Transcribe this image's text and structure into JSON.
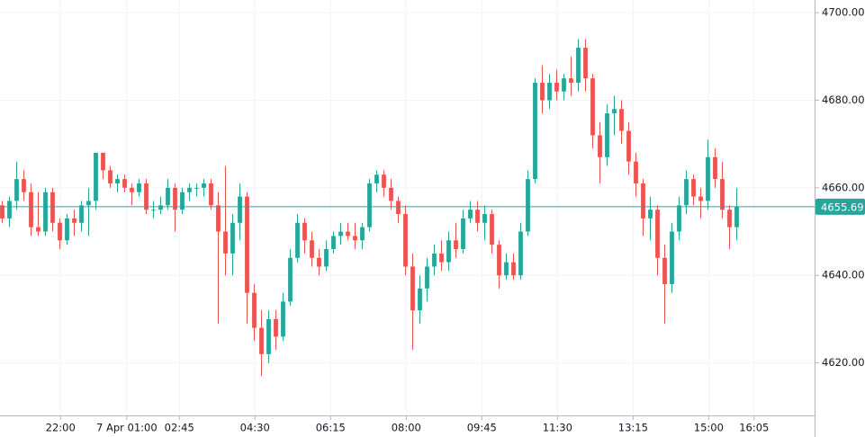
{
  "chart_data": {
    "type": "candlestick",
    "up_color": "#26a69a",
    "down_color": "#ef5350",
    "grid": true,
    "open": [
      4656,
      4653,
      4657,
      4662,
      4659,
      4651,
      4650,
      4659,
      4652,
      4648,
      4653,
      4652,
      4656,
      4657,
      4668,
      4664,
      4661,
      4662,
      4660,
      4659,
      4661,
      4655,
      4655,
      4656,
      4660,
      4655,
      4659,
      4660,
      4660,
      4661,
      4656,
      4650,
      4645,
      4652,
      4658,
      4636,
      4628,
      4622,
      4630,
      4626,
      4634,
      4644,
      4652,
      4648,
      4644,
      4642,
      4646,
      4649,
      4650,
      4649,
      4648,
      4651,
      4661,
      4663,
      4660,
      4657,
      4654,
      4642,
      4632,
      4637,
      4642,
      4645,
      4643,
      4648,
      4646,
      4653,
      4655,
      4652,
      4654,
      4647,
      4640,
      4643,
      4640,
      4650,
      4662,
      4684,
      4680,
      4684,
      4682,
      4685,
      4684,
      4692,
      4685,
      4672,
      4667,
      4677,
      4678,
      4673,
      4666,
      4661,
      4653,
      4655,
      4644,
      4638,
      4650,
      4656,
      4662,
      4658,
      4657,
      4667,
      4662,
      4655,
      4651
    ],
    "high": [
      4657,
      4658,
      4666,
      4664,
      4661,
      4659,
      4660,
      4660,
      4653,
      4654,
      4655,
      4657,
      4660,
      4668,
      4668,
      4665,
      4663,
      4663,
      4661,
      4662,
      4662,
      4657,
      4658,
      4662,
      4661,
      4660,
      4661,
      4661,
      4662,
      4662,
      4659,
      4665,
      4654,
      4661,
      4659,
      4638,
      4632,
      4632,
      4632,
      4636,
      4646,
      4654,
      4653,
      4650,
      4646,
      4648,
      4650,
      4652,
      4652,
      4652,
      4652,
      4662,
      4664,
      4664,
      4662,
      4658,
      4656,
      4645,
      4640,
      4644,
      4647,
      4648,
      4650,
      4652,
      4655,
      4657,
      4657,
      4656,
      4655,
      4648,
      4645,
      4645,
      4652,
      4664,
      4685,
      4688,
      4686,
      4687,
      4686,
      4690,
      4694,
      4694,
      4686,
      4675,
      4679,
      4681,
      4680,
      4675,
      4668,
      4662,
      4658,
      4656,
      4647,
      4652,
      4658,
      4664,
      4663,
      4660,
      4671,
      4669,
      4666,
      4656,
      4660
    ],
    "low": [
      4652,
      4651,
      4655,
      4657,
      4649,
      4649,
      4649,
      4650,
      4646,
      4647,
      4649,
      4650,
      4649,
      4655,
      4662,
      4660,
      4659,
      4659,
      4656,
      4658,
      4654,
      4653,
      4654,
      4655,
      4650,
      4654,
      4657,
      4658,
      4658,
      4655,
      4629,
      4640,
      4640,
      4648,
      4629,
      4625,
      4617,
      4620,
      4623,
      4625,
      4633,
      4643,
      4645,
      4642,
      4640,
      4641,
      4645,
      4647,
      4648,
      4646,
      4646,
      4650,
      4659,
      4658,
      4655,
      4652,
      4640,
      4623,
      4629,
      4634,
      4640,
      4641,
      4641,
      4644,
      4645,
      4652,
      4650,
      4648,
      4645,
      4637,
      4639,
      4639,
      4639,
      4649,
      4661,
      4677,
      4678,
      4680,
      4680,
      4681,
      4682,
      4682,
      4669,
      4661,
      4665,
      4672,
      4670,
      4663,
      4658,
      4649,
      4648,
      4640,
      4629,
      4636,
      4648,
      4654,
      4656,
      4653,
      4655,
      4660,
      4653,
      4646,
      4648
    ],
    "close": [
      4653,
      4657,
      4662,
      4659,
      4651,
      4650,
      4659,
      4652,
      4648,
      4653,
      4652,
      4656,
      4657,
      4668,
      4664,
      4661,
      4662,
      4660,
      4659,
      4661,
      4655,
      4655,
      4656,
      4660,
      4655,
      4659,
      4660,
      4660,
      4661,
      4656,
      4650,
      4645,
      4652,
      4658,
      4636,
      4628,
      4622,
      4630,
      4626,
      4634,
      4644,
      4652,
      4648,
      4644,
      4642,
      4646,
      4649,
      4650,
      4649,
      4648,
      4651,
      4661,
      4663,
      4660,
      4657,
      4654,
      4642,
      4632,
      4637,
      4642,
      4645,
      4643,
      4648,
      4646,
      4653,
      4655,
      4652,
      4654,
      4647,
      4640,
      4643,
      4640,
      4650,
      4662,
      4684,
      4680,
      4684,
      4682,
      4685,
      4684,
      4692,
      4685,
      4672,
      4667,
      4677,
      4678,
      4673,
      4666,
      4661,
      4653,
      4655,
      4644,
      4638,
      4650,
      4656,
      4662,
      4658,
      4657,
      4667,
      4662,
      4655,
      4651,
      4655.69
    ],
    "xlim": [
      -0.2,
      112.9
    ],
    "xticks": [
      {
        "value": 8.2,
        "label": "22:00"
      },
      {
        "value": 17.4,
        "label": "7 Apr 01:00"
      },
      {
        "value": 24.7,
        "label": "02:45"
      },
      {
        "value": 35.2,
        "label": "04:30"
      },
      {
        "value": 45.7,
        "label": "06:15"
      },
      {
        "value": 56.2,
        "label": "08:00"
      },
      {
        "value": 66.7,
        "label": "09:45"
      },
      {
        "value": 77.2,
        "label": "11:30"
      },
      {
        "value": 87.7,
        "label": "13:15"
      },
      {
        "value": 98.2,
        "label": "15:00"
      },
      {
        "value": 104.5,
        "label": "16:05"
      }
    ],
    "ylim": [
      4608,
      4702.9
    ],
    "yticks": [
      {
        "value": 4620,
        "label": "4620.00"
      },
      {
        "value": 4640,
        "label": "4640.00"
      },
      {
        "value": 4660,
        "label": "4660.00"
      },
      {
        "value": 4680,
        "label": "4680.00"
      },
      {
        "value": 4700,
        "label": "4700.00"
      }
    ],
    "last_price": 4655.69,
    "last_price_color": "#26a69a"
  }
}
